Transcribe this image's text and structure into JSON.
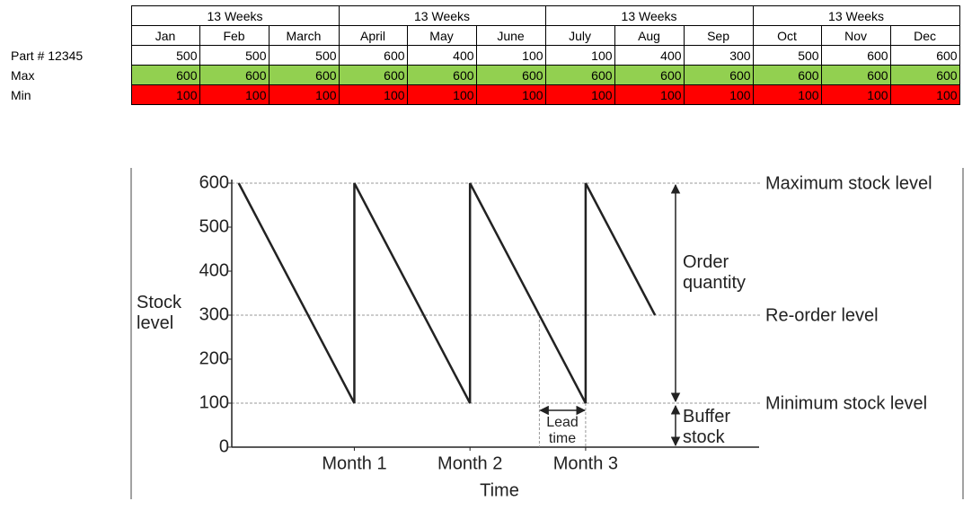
{
  "table": {
    "groups": [
      "13 Weeks",
      "13 Weeks",
      "13 Weeks",
      "13 Weeks"
    ],
    "months": [
      "Jan",
      "Feb",
      "March",
      "April",
      "May",
      "June",
      "July",
      "Aug",
      "Sep",
      "Oct",
      "Nov",
      "Dec"
    ],
    "rows": [
      {
        "label": "Part # 12345",
        "values": [
          500,
          500,
          500,
          600,
          400,
          100,
          100,
          400,
          300,
          500,
          600,
          600
        ]
      },
      {
        "label": "Max",
        "values": [
          600,
          600,
          600,
          600,
          600,
          600,
          600,
          600,
          600,
          600,
          600,
          600
        ]
      },
      {
        "label": "Min",
        "values": [
          100,
          100,
          100,
          100,
          100,
          100,
          100,
          100,
          100,
          100,
          100,
          100
        ]
      }
    ]
  },
  "chart_data": {
    "type": "line",
    "x_label": "Time",
    "y_label": "Stock level",
    "x": [
      0,
      1,
      1,
      2,
      2,
      3,
      3,
      3.6
    ],
    "series": [
      {
        "color": "#222222",
        "values": [
          600,
          100,
          600,
          100,
          600,
          100,
          600,
          300
        ]
      }
    ],
    "xlim": [
      -0.06,
      4.5
    ],
    "xticks": [
      {
        "value": 1,
        "label": "Month 1"
      },
      {
        "value": 2,
        "label": "Month 2"
      },
      {
        "value": 3,
        "label": "Month 3"
      }
    ],
    "ylim": [
      0,
      600
    ],
    "yticks": [
      0,
      100,
      200,
      300,
      400,
      500,
      600
    ],
    "reference_lines": [
      {
        "value": 600,
        "label": "Maximum stock level"
      },
      {
        "value": 300,
        "label": "Re-order level"
      },
      {
        "value": 100,
        "label": "Minimum stock level"
      }
    ],
    "order_quantity": "Order quantity",
    "buffer_stock": "Buffer stock",
    "lead_time": {
      "label": "Lead time",
      "x": [
        2.6,
        3
      ]
    }
  }
}
